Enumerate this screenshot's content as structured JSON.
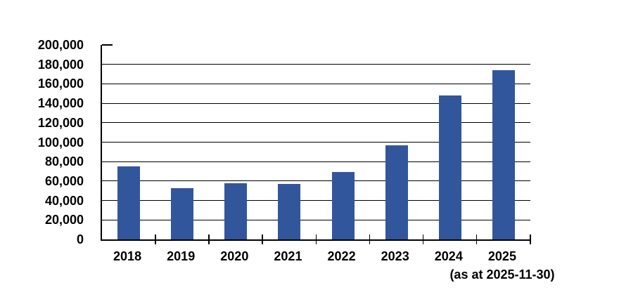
{
  "chart_data": {
    "type": "bar",
    "title": "",
    "xlabel": "",
    "ylabel": "",
    "categories": [
      "2018",
      "2019",
      "2020",
      "2021",
      "2022",
      "2023",
      "2024",
      "2025"
    ],
    "values": [
      75000,
      53000,
      58000,
      57000,
      69000,
      97000,
      148000,
      174000
    ],
    "ylim": [
      0,
      200000
    ],
    "ytick_step": 20000,
    "ytick_labels": [
      "0",
      "20,000",
      "40,000",
      "60,000",
      "80,000",
      "100,000",
      "120,000",
      "140,000",
      "160,000",
      "180,000",
      "200,000"
    ],
    "grid": true,
    "legend": false,
    "legend_position": "none",
    "annotation": "(as at 2025-11-30)",
    "bar_color": "#32569B",
    "axis_color": "#000000",
    "gridline_color": "#000000",
    "text_color": "#000000",
    "background_color": "#FFFFFF"
  }
}
